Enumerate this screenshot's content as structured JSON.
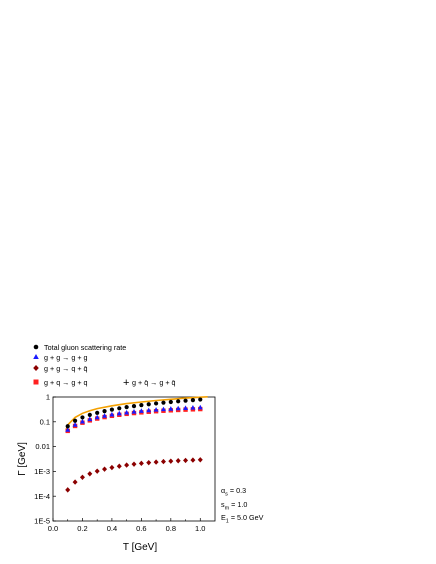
{
  "chart_data": {
    "type": "scatter",
    "title": "",
    "xlabel": "T [GeV]",
    "ylabel": "Γ [GeV]",
    "xlim": [
      0.0,
      1.1
    ],
    "ylim": [
      1e-05,
      1
    ],
    "yscale": "log",
    "x_ticks": [
      "0.0",
      "0.2",
      "0.4",
      "0.6",
      "0.8",
      "1.0"
    ],
    "y_ticks": [
      "1E-5",
      "1E-4",
      "1E-3",
      "0.01",
      "0.1",
      "1"
    ],
    "x": [
      0.1,
      0.15,
      0.2,
      0.25,
      0.3,
      0.35,
      0.4,
      0.45,
      0.5,
      0.55,
      0.6,
      0.65,
      0.7,
      0.75,
      0.8,
      0.85,
      0.9,
      0.95,
      1.0
    ],
    "legend_position": "top-left",
    "series": [
      {
        "name": "Total gluon scattering rate",
        "marker": "circle",
        "color": "#000000",
        "values": [
          0.066,
          0.11,
          0.15,
          0.19,
          0.23,
          0.27,
          0.31,
          0.35,
          0.39,
          0.43,
          0.47,
          0.51,
          0.55,
          0.59,
          0.63,
          0.67,
          0.71,
          0.75,
          0.79
        ]
      },
      {
        "name": "g + g → g + g",
        "marker": "triangle",
        "color": "#1a1aff",
        "values": [
          0.048,
          0.076,
          0.103,
          0.128,
          0.152,
          0.175,
          0.197,
          0.218,
          0.238,
          0.257,
          0.275,
          0.292,
          0.308,
          0.323,
          0.337,
          0.35,
          0.362,
          0.373,
          0.383
        ]
      },
      {
        "name": "g + g → q + q̄",
        "marker": "diamond",
        "color": "#8b0000",
        "values": [
          0.00018,
          0.00037,
          0.00058,
          0.0008,
          0.00102,
          0.00123,
          0.00143,
          0.00162,
          0.0018,
          0.00196,
          0.00211,
          0.00225,
          0.00237,
          0.00249,
          0.00259,
          0.00269,
          0.00278,
          0.00286,
          0.00294
        ]
      },
      {
        "name": "g + q → g + q",
        "name_part2": "g + q̄ → g + q̄",
        "marker": "square",
        "color": "#ff2020",
        "values": [
          0.043,
          0.068,
          0.092,
          0.114,
          0.135,
          0.155,
          0.174,
          0.192,
          0.209,
          0.225,
          0.24,
          0.254,
          0.267,
          0.279,
          0.29,
          0.3,
          0.309,
          0.318,
          0.326
        ]
      }
    ],
    "curve": {
      "color": "#f4a000",
      "x": [
        0.09,
        0.1,
        0.15,
        0.2,
        0.25,
        0.3,
        0.4,
        0.5,
        0.6,
        0.7,
        0.8,
        0.9,
        1.0,
        1.05
      ],
      "values": [
        0.05,
        0.075,
        0.15,
        0.22,
        0.28,
        0.34,
        0.44,
        0.54,
        0.63,
        0.72,
        0.81,
        0.9,
        0.98,
        1.02
      ]
    },
    "parameters": [
      {
        "symbol": "α",
        "sub": "s",
        "rest": " = 0.3"
      },
      {
        "symbol": "s",
        "sub": "m",
        "rest": " = 1.0"
      },
      {
        "symbol": "E",
        "sub": "1",
        "rest": " = 5.0 GeV"
      }
    ],
    "legend_plus_sign": "+"
  }
}
